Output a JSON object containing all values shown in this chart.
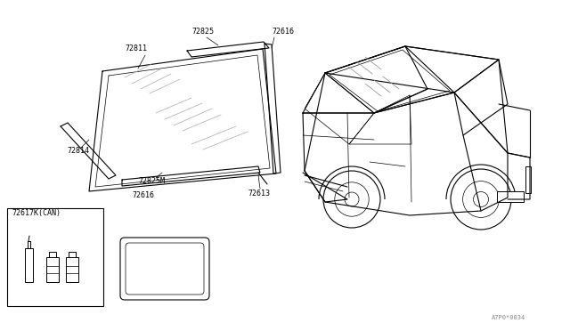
{
  "bg_color": "#ffffff",
  "line_color": "#000000",
  "fig_width": 6.4,
  "fig_height": 3.72,
  "dpi": 100,
  "watermark": "A7P0*0034",
  "label_fontsize": 6.0
}
